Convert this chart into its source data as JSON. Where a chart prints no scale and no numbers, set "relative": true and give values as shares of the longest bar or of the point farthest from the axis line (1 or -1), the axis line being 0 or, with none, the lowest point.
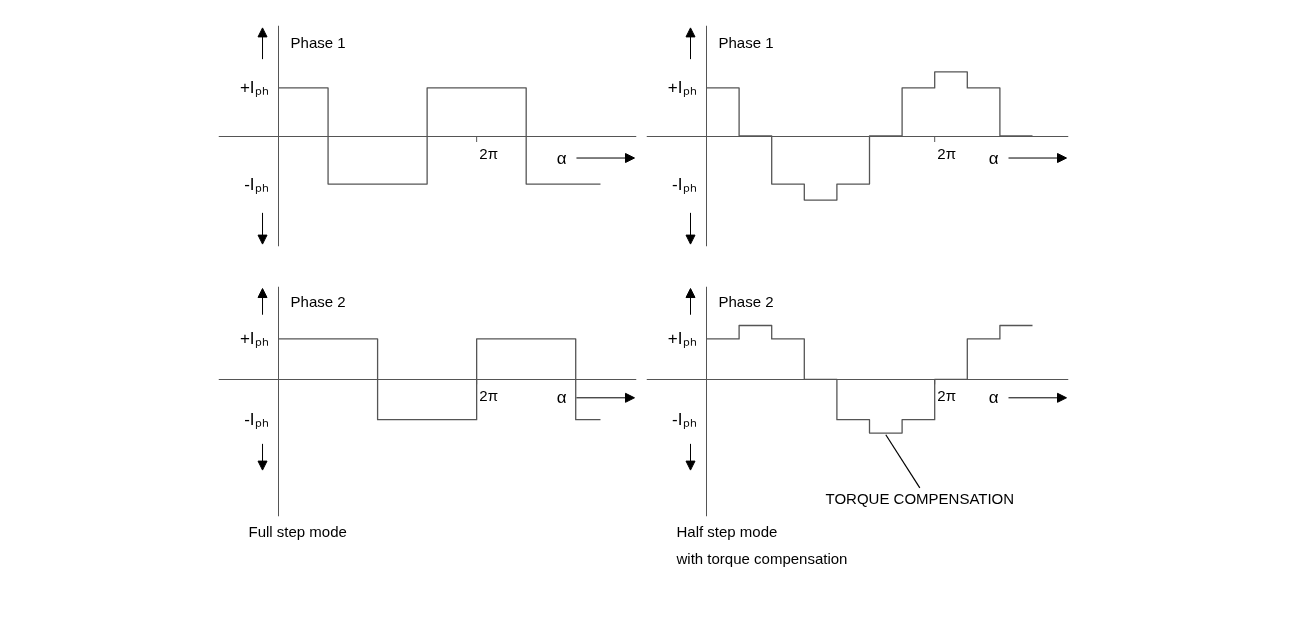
{
  "chart_data": [
    {
      "type": "step",
      "relative": true,
      "title": "Phase 1",
      "xlabel": "α",
      "categories": [
        null,
        null,
        null,
        null,
        null,
        null,
        null,
        null,
        null,
        null,
        null,
        null,
        null,
        null
      ],
      "series": [
        {
          "color": "#555555",
          "values": [
            1,
            1,
            -1,
            -1,
            -1,
            -1,
            1,
            1,
            1,
            1,
            -1,
            -1,
            -1,
            -1
          ]
        }
      ],
      "annotations": [
        "+Iₚₕ",
        "-Iₚₕ",
        "2π"
      ]
    },
    {
      "type": "step",
      "relative": true,
      "title": "Phase 1",
      "xlabel": "α",
      "categories": [
        null,
        null,
        null,
        null,
        null,
        null,
        null,
        null,
        null,
        null,
        null
      ],
      "series": [
        {
          "color": "#555555",
          "values": [
            0.75,
            0,
            -0.75,
            -1,
            -0.75,
            0,
            0.75,
            1,
            0.75,
            0,
            0
          ]
        }
      ],
      "annotations": [
        "+Iₚₕ",
        "-Iₚₕ",
        "2π"
      ]
    },
    {
      "type": "step",
      "relative": true,
      "title": "Phase 2",
      "xlabel": "α",
      "categories": [
        null,
        null,
        null,
        null,
        null,
        null,
        null,
        null,
        null,
        null,
        null,
        null,
        null,
        null
      ],
      "series": [
        {
          "color": "#555555",
          "values": [
            1,
            1,
            1,
            1,
            -1,
            -1,
            -1,
            -1,
            1,
            1,
            1,
            1,
            -1,
            -1
          ]
        }
      ],
      "annotations": [
        "+Iₚₕ",
        "-Iₚₕ",
        "2π",
        "Full step mode"
      ]
    },
    {
      "type": "step",
      "relative": true,
      "title": "Phase 2",
      "xlabel": "α",
      "categories": [
        null,
        null,
        null,
        null,
        null,
        null,
        null,
        null,
        null,
        null,
        null
      ],
      "series": [
        {
          "color": "#555555",
          "values": [
            0.75,
            1,
            0.75,
            0,
            -0.75,
            -1,
            -0.75,
            0,
            0.75,
            1,
            1
          ]
        }
      ],
      "annotations": [
        "+Iₚₕ",
        "-Iₚₕ",
        "2π",
        "Half step mode\nwith torque compensation",
        "TORQUE COMPENSATION"
      ]
    }
  ]
}
